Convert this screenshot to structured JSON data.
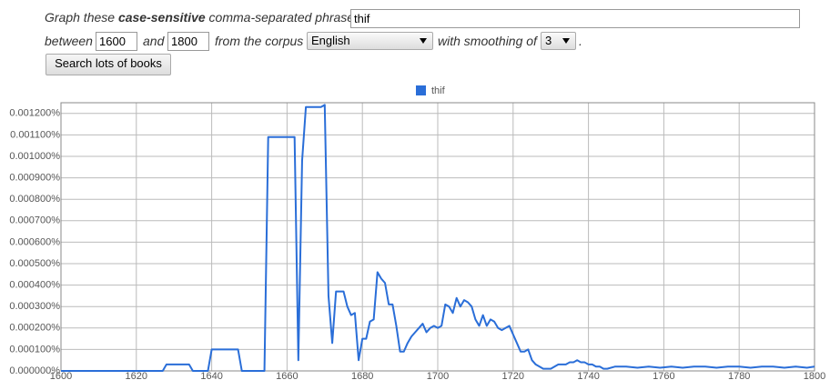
{
  "form": {
    "prefix": "Graph these ",
    "emphasis": "case-sensitive",
    "suffix": " comma-separated phrases:",
    "phrases": "thif",
    "between_label": "between",
    "start_year": "1600",
    "and_label": "and",
    "end_year": "1800",
    "corpus_label": "from the corpus",
    "corpus": "English",
    "smoothing_label": "with smoothing of",
    "smoothing": "3",
    "period": ".",
    "button": "Search lots of books"
  },
  "chart_data": {
    "type": "line",
    "x": [
      1600,
      1627,
      1628,
      1634,
      1635,
      1639,
      1640,
      1647,
      1648,
      1654,
      1655,
      1662,
      1663,
      1664,
      1665,
      1669,
      1670,
      1671,
      1672,
      1673,
      1674,
      1675,
      1676,
      1677,
      1678,
      1679,
      1680,
      1681,
      1682,
      1683,
      1684,
      1685,
      1686,
      1687,
      1688,
      1689,
      1690,
      1691,
      1692,
      1693,
      1694,
      1695,
      1696,
      1697,
      1698,
      1699,
      1700,
      1701,
      1702,
      1703,
      1704,
      1705,
      1706,
      1707,
      1708,
      1709,
      1710,
      1711,
      1712,
      1713,
      1714,
      1715,
      1716,
      1717,
      1718,
      1719,
      1720,
      1721,
      1722,
      1723,
      1724,
      1725,
      1726,
      1727,
      1728,
      1729,
      1730,
      1731,
      1732,
      1733,
      1734,
      1735,
      1736,
      1737,
      1738,
      1739,
      1740,
      1741,
      1742,
      1743,
      1744,
      1745,
      1747,
      1750,
      1753,
      1756,
      1759,
      1762,
      1765,
      1768,
      1771,
      1774,
      1777,
      1780,
      1783,
      1786,
      1789,
      1792,
      1795,
      1798,
      1800
    ],
    "series": [
      {
        "name": "thif",
        "color": "#2a6ed8",
        "values": [
          0,
          0,
          3e-05,
          3e-05,
          0,
          0,
          0.0001,
          0.0001,
          0,
          0,
          0.00109,
          0.00109,
          5e-05,
          0.00098,
          0.00123,
          0.00123,
          0.00124,
          0.00035,
          0.00013,
          0.00037,
          0.00037,
          0.00037,
          0.0003,
          0.00026,
          0.00027,
          5e-05,
          0.00015,
          0.00015,
          0.00023,
          0.00024,
          0.00046,
          0.00043,
          0.00041,
          0.00031,
          0.00031,
          0.00021,
          9e-05,
          9e-05,
          0.00013,
          0.00016,
          0.00018,
          0.0002,
          0.00022,
          0.00018,
          0.0002,
          0.00021,
          0.0002,
          0.00021,
          0.00031,
          0.0003,
          0.00027,
          0.00034,
          0.0003,
          0.00033,
          0.00032,
          0.0003,
          0.00024,
          0.00021,
          0.00026,
          0.00021,
          0.00024,
          0.00023,
          0.0002,
          0.00019,
          0.0002,
          0.00021,
          0.00017,
          0.00013,
          9e-05,
          9e-05,
          0.0001,
          5e-05,
          3e-05,
          2e-05,
          1e-05,
          1e-05,
          1e-05,
          2e-05,
          3e-05,
          3e-05,
          3e-05,
          4e-05,
          4e-05,
          5e-05,
          4e-05,
          4e-05,
          3e-05,
          3e-05,
          2e-05,
          2e-05,
          1e-05,
          1e-05,
          2e-05,
          2e-05,
          1.5e-05,
          2e-05,
          1.5e-05,
          2e-05,
          1.5e-05,
          2e-05,
          2e-05,
          1.5e-05,
          2e-05,
          2e-05,
          1.5e-05,
          2e-05,
          2e-05,
          1.5e-05,
          2e-05,
          1.5e-05,
          2e-05
        ]
      }
    ],
    "xlim": [
      1600,
      1800
    ],
    "xticks": [
      1600,
      1620,
      1640,
      1660,
      1680,
      1700,
      1720,
      1740,
      1760,
      1780,
      1800
    ],
    "ylim": [
      0,
      0.00125
    ],
    "yticks": [
      {
        "value": 0,
        "label": "0.000000%"
      },
      {
        "value": 0.0001,
        "label": "0.000100%"
      },
      {
        "value": 0.0002,
        "label": "0.000200%"
      },
      {
        "value": 0.0003,
        "label": "0.000300%"
      },
      {
        "value": 0.0004,
        "label": "0.000400%"
      },
      {
        "value": 0.0005,
        "label": "0.000500%"
      },
      {
        "value": 0.0006,
        "label": "0.000600%"
      },
      {
        "value": 0.0007,
        "label": "0.000700%"
      },
      {
        "value": 0.0008,
        "label": "0.000800%"
      },
      {
        "value": 0.0009,
        "label": "0.000900%"
      },
      {
        "value": 0.001,
        "label": "0.001000%"
      },
      {
        "value": 0.0011,
        "label": "0.001100%"
      },
      {
        "value": 0.0012,
        "label": "0.001200%"
      }
    ],
    "grid": true,
    "legend": "top"
  }
}
